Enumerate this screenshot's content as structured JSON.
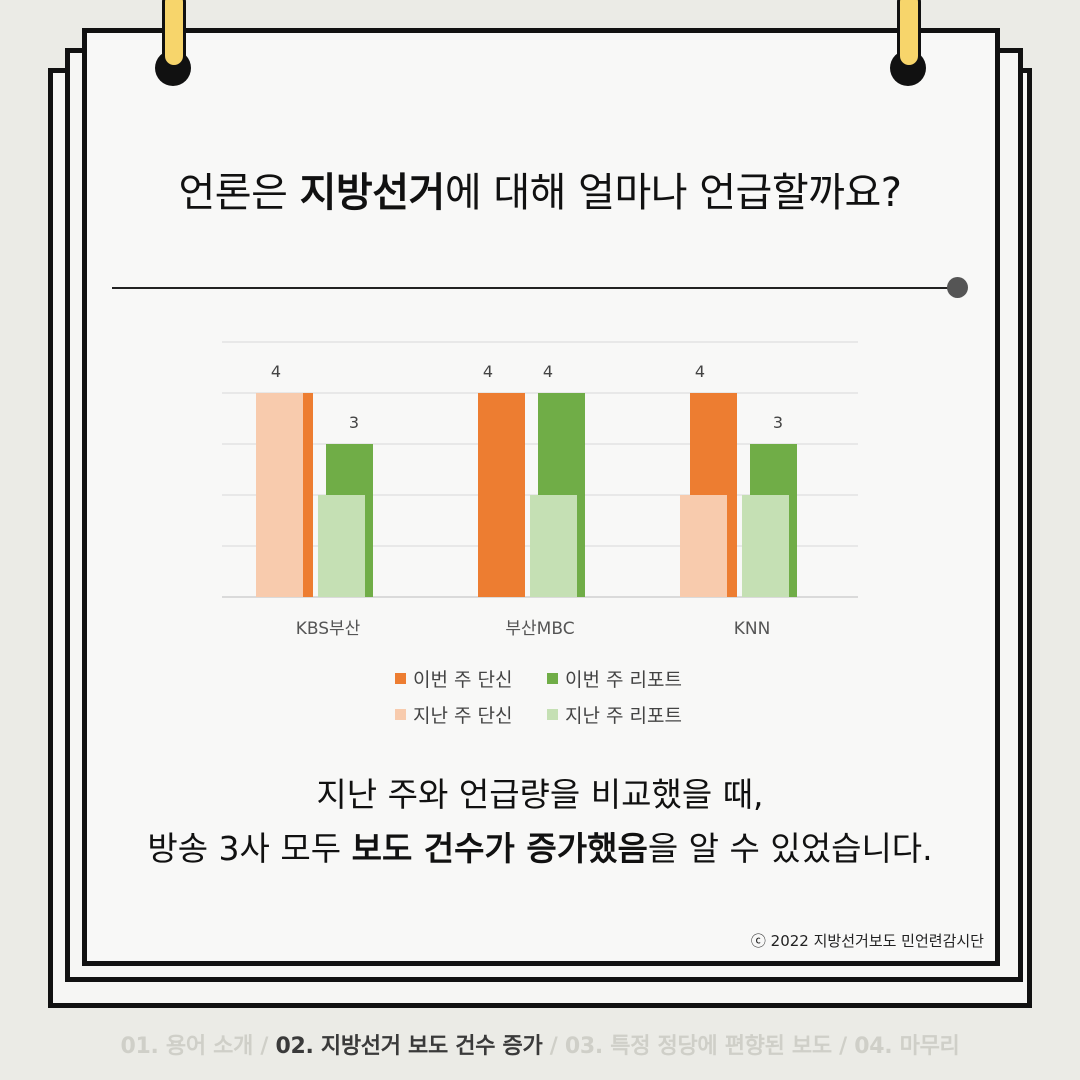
{
  "header": {
    "title_pre": "언론은 ",
    "title_bold": "지방선거",
    "title_post": "에 대해 얼마나 언급할까요?"
  },
  "chart_data": {
    "type": "bar",
    "categories": [
      "KBS부산",
      "부산MBC",
      "KNN"
    ],
    "series": [
      {
        "name": "이번 주 단신",
        "color": "#ed7d31",
        "values": [
          4,
          4,
          4
        ]
      },
      {
        "name": "이번 주 리포트",
        "color": "#70ad47",
        "values": [
          3,
          4,
          3
        ]
      },
      {
        "name": "지난 주 단신",
        "color": "#f8cbad",
        "values": [
          4,
          0,
          2
        ]
      },
      {
        "name": "지난 주 리포트",
        "color": "#c5e0b4",
        "values": [
          2,
          2,
          2
        ]
      }
    ],
    "data_labels": [
      {
        "category": "KBS부산",
        "value": "4"
      },
      {
        "category": "KBS부산",
        "value": "3"
      },
      {
        "category": "부산MBC",
        "value": "4"
      },
      {
        "category": "부산MBC",
        "value": "4"
      },
      {
        "category": "KNN",
        "value": "4"
      },
      {
        "category": "KNN",
        "value": "3"
      }
    ],
    "ylim": [
      0,
      5
    ],
    "grid": true,
    "legend_position": "bottom"
  },
  "legend": {
    "items": [
      "이번 주 단신",
      "이번 주 리포트",
      "지난 주 단신",
      "지난 주 리포트"
    ]
  },
  "summary": {
    "line1": "지난 주와 언급량을 비교했을 때,",
    "line2_pre": "방송 3사 모두 ",
    "line2_bold": "보도 건수가 증가했음",
    "line2_post": "을 알 수 있었습니다."
  },
  "copyright": "ⓒ 2022 지방선거보도 민언련감시단",
  "footer": {
    "part1": "01. 용어 소개 / ",
    "current": "02. 지방선거 보도 건수 증가",
    "part3": " / 03. 특정 정당에 편향된 보도 / 04. 마무리"
  },
  "colors": {
    "ring": "#f7d56b",
    "background": "#ebebe6"
  }
}
